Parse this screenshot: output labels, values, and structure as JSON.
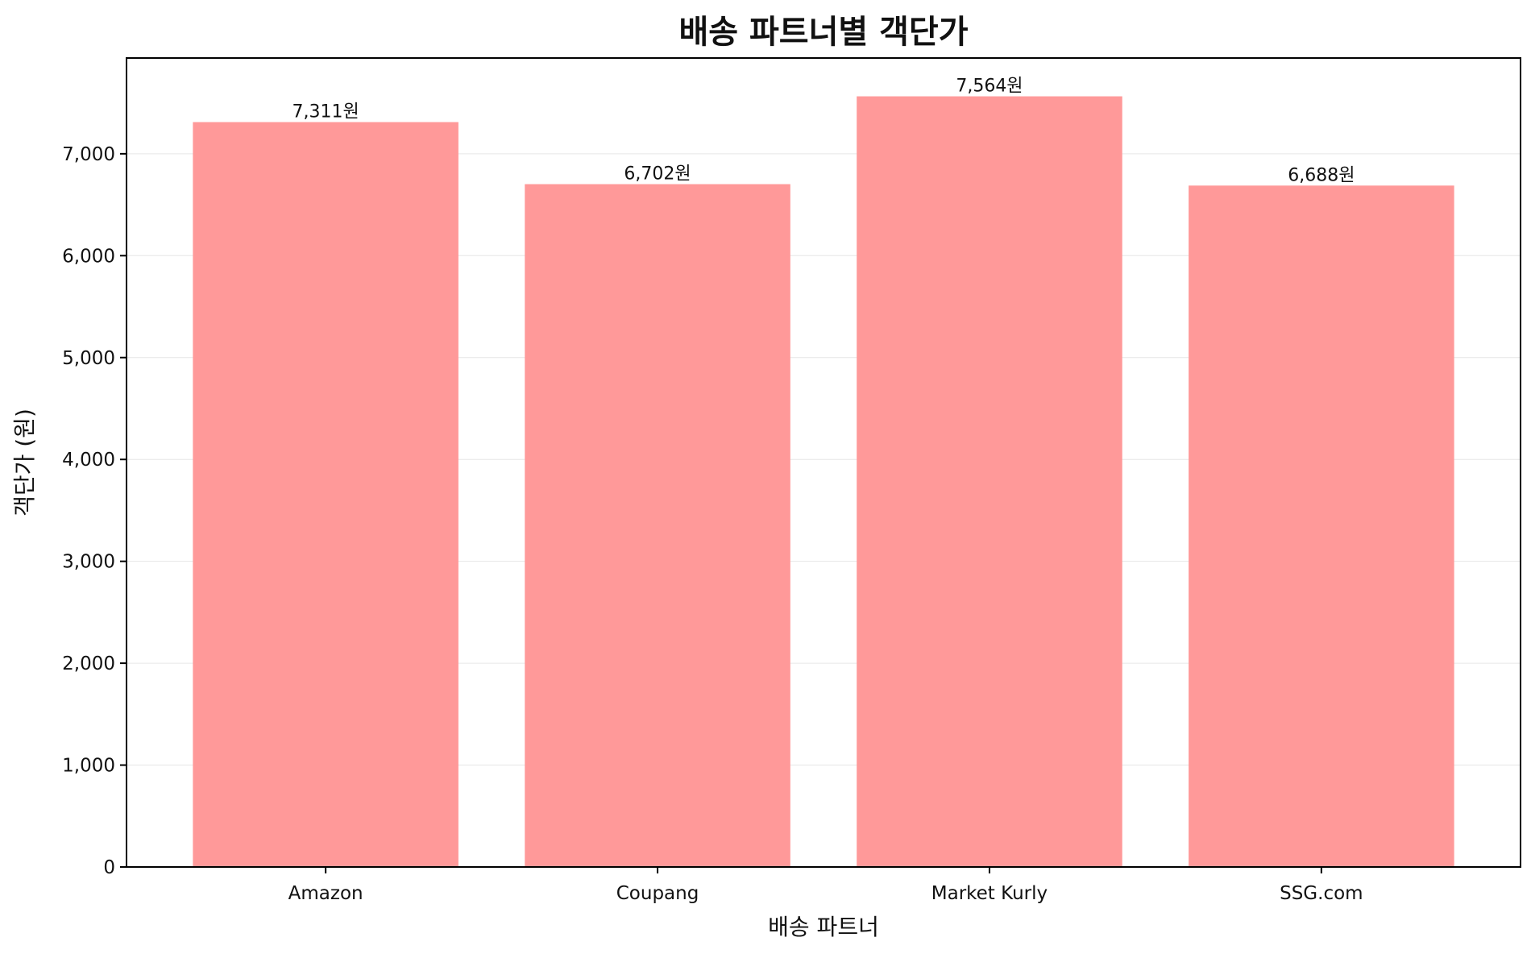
{
  "chart_data": {
    "type": "bar",
    "title": "배송 파트너별 객단가",
    "xlabel": "배송 파트너",
    "ylabel": "객단가 (원)",
    "categories": [
      "Amazon",
      "Coupang",
      "Market Kurly",
      "SSG.com"
    ],
    "values": [
      7311,
      6702,
      7564,
      6688
    ],
    "data_labels": [
      "7,311원",
      "6,702원",
      "7,564원",
      "6,688원"
    ],
    "ylim": [
      0,
      7940
    ],
    "yticks": [
      0,
      1000,
      2000,
      3000,
      4000,
      5000,
      6000,
      7000
    ],
    "ytick_labels": [
      "0",
      "1,000",
      "2,000",
      "3,000",
      "4,000",
      "5,000",
      "6,000",
      "7,000"
    ],
    "grid": true,
    "colors": {
      "bar": "#ff9999",
      "grid": "#e6e6e6",
      "axis": "#000000"
    }
  }
}
